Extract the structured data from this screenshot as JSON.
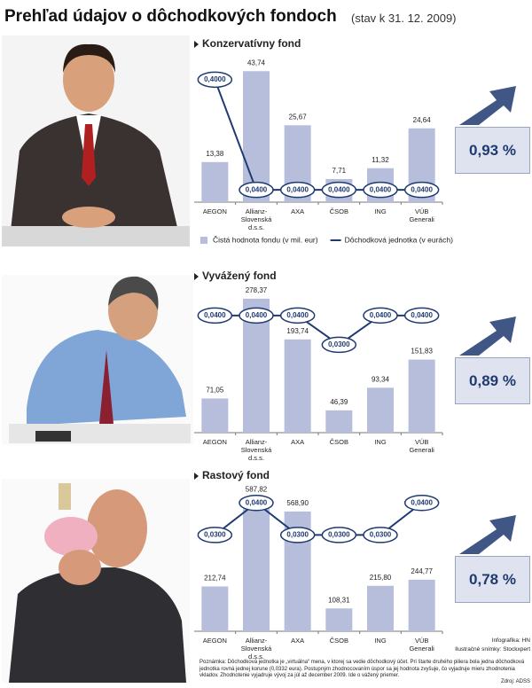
{
  "title": "Prehľad údajov o dôchodkových fondoch",
  "subtitle": "(stav k 31. 12. 2009)",
  "chart_data": [
    {
      "type": "bar_line",
      "title": "Konzervatívny fond",
      "highlight": "0,93 %",
      "categories": [
        "AEGON",
        "Allianz-\nSlovenská d.s.s.",
        "AXA",
        "ČSOB",
        "ING",
        "VÚB\nGenerali"
      ],
      "ylim": [
        0,
        45
      ],
      "y2lim": [
        0,
        0.44
      ],
      "series": [
        {
          "name": "Čistá hodnota fondu (v mil. eur)",
          "color": "#b6bedb",
          "values": [
            13.38,
            43.74,
            25.67,
            7.71,
            11.32,
            24.64
          ],
          "value_labels": [
            "13,38",
            "43,74",
            "25,67",
            "7,71",
            "11,32",
            "24,64"
          ]
        },
        {
          "name": "Dôchodková jednotka (v eurách)",
          "color": "#1f3a70",
          "axis": "y2",
          "values": [
            0.4,
            0.04,
            0.04,
            0.04,
            0.04,
            0.04
          ],
          "value_labels": [
            "0,4000",
            "0,0400",
            "0,0400",
            "0,0400",
            "0,0400",
            "0,0400"
          ]
        }
      ]
    },
    {
      "type": "bar_line",
      "title": "Vyvážený fond",
      "highlight": "0,89 %",
      "categories": [
        "AEGON",
        "Allianz-\nSlovenská d.s.s.",
        "AXA",
        "ČSOB",
        "ING",
        "VÚB\nGenerali"
      ],
      "ylim": [
        0,
        280
      ],
      "y2lim": [
        0,
        0.046
      ],
      "series": [
        {
          "color": "#b6bedb",
          "values": [
            71.05,
            278.37,
            193.74,
            46.39,
            93.34,
            151.83
          ],
          "value_labels": [
            "71,05",
            "278,37",
            "193,74",
            "46,39",
            "93,34",
            "151,83"
          ]
        },
        {
          "color": "#1f3a70",
          "axis": "y2",
          "values": [
            0.04,
            0.04,
            0.04,
            0.03,
            0.04,
            0.04
          ],
          "value_labels": [
            "0,0400",
            "0,0400",
            "0,0400",
            "0,0300",
            "0,0400",
            "0,0400"
          ]
        }
      ]
    },
    {
      "type": "bar_line",
      "title": "Rastový fond",
      "highlight": "0,78 %",
      "categories": [
        "AEGON",
        "Allianz-\nSlovenská d.s.s.",
        "AXA",
        "ČSOB",
        "ING",
        "VÚB\nGenerali"
      ],
      "ylim": [
        0,
        640
      ],
      "y2lim": [
        0,
        0.042
      ],
      "series": [
        {
          "color": "#b6bedb",
          "values": [
            212.74,
            587.82,
            568.9,
            108.31,
            215.8,
            244.77
          ],
          "value_labels": [
            "212,74",
            "587,82",
            "568,90",
            "108,31",
            "215,80",
            "244,77"
          ]
        },
        {
          "color": "#1f3a70",
          "axis": "y2",
          "values": [
            0.03,
            0.04,
            0.03,
            0.03,
            0.03,
            0.04
          ],
          "value_labels": [
            "0,0300",
            "0,0400",
            "0,0300",
            "0,0300",
            "0,0300",
            "0,0400"
          ]
        }
      ]
    }
  ],
  "credits": [
    "Infografika: HN",
    "Ilustračné snímky: Stockxpert"
  ],
  "note": "Poznámka: Dôchodková jednotka je „virtuálna“ mena, v ktorej sa vedie dôchodkový účet. Pri štarte druhého piliera bola jedna dôchodková jednotka rovná jednej korune (0,0332 eura). Postupným zhodnocovaním úspor sa jej hodnota zvyšuje, čo vyjadruje mieru zhodnotenia vkladov. Zhodnotenie vyjadruje vývoj za júl až december 2009. Ide o vážený priemer.",
  "source": "Zdroj: ADSS"
}
